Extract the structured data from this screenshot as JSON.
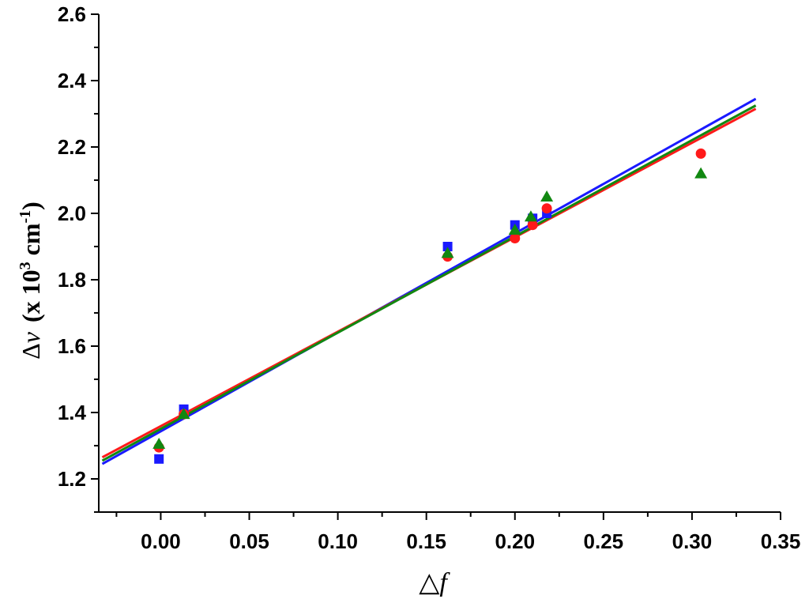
{
  "chart_data": {
    "type": "scatter",
    "xlabel": {
      "symbol": "△",
      "var": "f"
    },
    "ylabel": {
      "symbol": "Δ",
      "var": "v",
      "unit_prefix": "(x 10",
      "exp1": "3",
      "unit_mid": " cm",
      "exp2": "-1",
      "unit_suffix": ")"
    },
    "xlim": [
      -0.035,
      0.35
    ],
    "ylim": [
      1.1,
      2.6
    ],
    "xticks": [
      0.0,
      0.05,
      0.1,
      0.15,
      0.2,
      0.25,
      0.3,
      0.35
    ],
    "xtick_labels": [
      "0.00",
      "0.05",
      "0.10",
      "0.15",
      "0.20",
      "0.25",
      "0.30",
      "0.35"
    ],
    "yticks": [
      1.2,
      1.4,
      1.6,
      1.8,
      2.0,
      2.2,
      2.4,
      2.6
    ],
    "ytick_labels": [
      "1.2",
      "1.4",
      "1.6",
      "1.8",
      "2.0",
      "2.2",
      "2.4",
      "2.6"
    ],
    "grid": false,
    "series": [
      {
        "marker": "square",
        "color": "#1a1aff",
        "x": [
          -0.001,
          0.013,
          0.162,
          0.2,
          0.21,
          0.218
        ],
        "y": [
          1.26,
          1.41,
          1.9,
          1.965,
          1.985,
          2.0
        ],
        "fit": {
          "x": [
            -0.033,
            0.336
          ],
          "y": [
            1.245,
            2.345
          ]
        }
      },
      {
        "marker": "circle",
        "color": "#ff1a1a",
        "x": [
          -0.001,
          0.013,
          0.162,
          0.2,
          0.21,
          0.218,
          0.305
        ],
        "y": [
          1.295,
          1.395,
          1.87,
          1.925,
          1.965,
          2.015,
          2.18
        ],
        "fit": {
          "x": [
            -0.033,
            0.336
          ],
          "y": [
            1.265,
            2.315
          ]
        }
      },
      {
        "marker": "triangle",
        "color": "#118811",
        "x": [
          -0.001,
          0.013,
          0.162,
          0.2,
          0.209,
          0.218,
          0.305
        ],
        "y": [
          1.305,
          1.395,
          1.88,
          1.95,
          1.99,
          2.05,
          2.12
        ],
        "fit": {
          "x": [
            -0.033,
            0.336
          ],
          "y": [
            1.255,
            2.325
          ]
        }
      }
    ]
  }
}
